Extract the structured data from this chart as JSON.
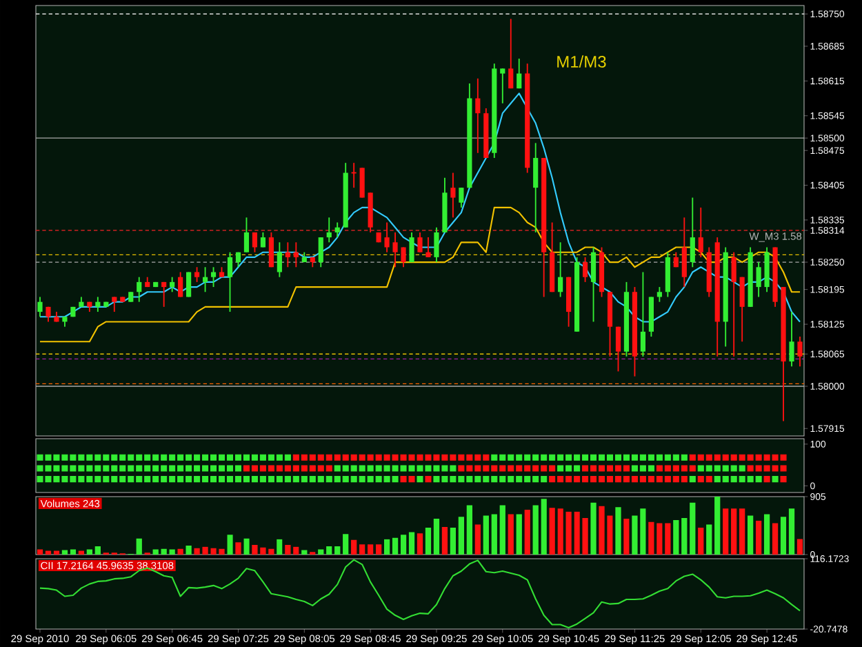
{
  "chart_data": [
    {
      "type": "candlestick",
      "categories": [
        null,
        null,
        null,
        null,
        null,
        null,
        null,
        null,
        null,
        null,
        null,
        null,
        null,
        null,
        null,
        null,
        null,
        null,
        null,
        null,
        null,
        null,
        null,
        null,
        null,
        null,
        null,
        null,
        null,
        null,
        null,
        null,
        null,
        null,
        null,
        null,
        null,
        null,
        null,
        null,
        null,
        null,
        null,
        null,
        null,
        null,
        null,
        null,
        null,
        null,
        null,
        null,
        null,
        null,
        null,
        null,
        null,
        null,
        null,
        null,
        null,
        null,
        null,
        null,
        null,
        null,
        null,
        null,
        null,
        null,
        null,
        null,
        null,
        null,
        null,
        null,
        null,
        null,
        null,
        null,
        null,
        null,
        null,
        null,
        null,
        null,
        null,
        null,
        null,
        null,
        null,
        null,
        null
      ],
      "ohlc": [
        [
          1.5815,
          1.5818,
          1.5814,
          1.5817
        ],
        [
          1.5816,
          1.5816,
          1.5813,
          1.5814
        ],
        [
          1.5814,
          1.5815,
          1.5813,
          1.5813
        ],
        [
          1.5813,
          1.5814,
          1.5812,
          1.5814
        ],
        [
          1.5814,
          1.5816,
          1.5814,
          1.5816
        ],
        [
          1.5816,
          1.5818,
          1.5816,
          1.5817
        ],
        [
          1.5817,
          1.5817,
          1.5815,
          1.5816
        ],
        [
          1.5816,
          1.5818,
          1.5815,
          1.5817
        ],
        [
          1.5816,
          1.5817,
          1.5816,
          1.5817
        ],
        [
          1.5818,
          1.5818,
          1.5815,
          1.5817
        ],
        [
          1.5818,
          1.5818,
          1.5817,
          1.5817
        ],
        [
          1.5817,
          1.5819,
          1.5817,
          1.5819
        ],
        [
          1.5819,
          1.5822,
          1.5817,
          1.5821
        ],
        [
          1.5821,
          1.5822,
          1.582,
          1.582
        ],
        [
          1.582,
          1.5821,
          1.582,
          1.5821
        ],
        [
          1.5821,
          1.5821,
          1.5816,
          1.582
        ],
        [
          1.582,
          1.5822,
          1.5819,
          1.5821
        ],
        [
          1.5822,
          1.5823,
          1.5818,
          1.5818
        ],
        [
          1.5818,
          1.5823,
          1.5818,
          1.5823
        ],
        [
          1.5823,
          1.5824,
          1.5821,
          1.5822
        ],
        [
          1.5821,
          1.5824,
          1.5819,
          1.5822
        ],
        [
          1.5822,
          1.5824,
          1.582,
          1.5823
        ],
        [
          1.5823,
          1.5824,
          1.5822,
          1.5822
        ],
        [
          1.5822,
          1.5827,
          1.5815,
          1.5826
        ],
        [
          1.5825,
          1.5827,
          1.5824,
          1.5827
        ],
        [
          1.5827,
          1.5834,
          1.5827,
          1.5831
        ],
        [
          1.5831,
          1.5831,
          1.5827,
          1.5828
        ],
        [
          1.5828,
          1.5831,
          1.5828,
          1.583
        ],
        [
          1.583,
          1.5831,
          1.5824,
          1.5824
        ],
        [
          1.5823,
          1.5829,
          1.5822,
          1.5827
        ],
        [
          1.5827,
          1.5829,
          1.5824,
          1.5826
        ],
        [
          1.5827,
          1.5829,
          1.5824,
          1.5826
        ],
        [
          1.5825,
          1.5827,
          1.5825,
          1.5826
        ],
        [
          1.5826,
          1.5826,
          1.5824,
          1.5825
        ],
        [
          1.5825,
          1.583,
          1.5824,
          1.583
        ],
        [
          1.583,
          1.5834,
          1.5829,
          1.5831
        ],
        [
          1.5831,
          1.5833,
          1.583,
          1.5832
        ],
        [
          1.5832,
          1.5845,
          1.5832,
          1.5843
        ],
        [
          1.5843,
          1.5845,
          1.584,
          1.5843
        ],
        [
          1.5844,
          1.5844,
          1.5838,
          1.5838
        ],
        [
          1.5839,
          1.5839,
          1.5831,
          1.5832
        ],
        [
          1.5831,
          1.5831,
          1.5829,
          1.5829
        ],
        [
          1.583,
          1.5833,
          1.5827,
          1.5828
        ],
        [
          1.5829,
          1.5831,
          1.5824,
          1.5827
        ],
        [
          1.5828,
          1.5828,
          1.5824,
          1.5825
        ],
        [
          1.5825,
          1.5831,
          1.5825,
          1.583
        ],
        [
          1.583,
          1.5831,
          1.5827,
          1.5827
        ],
        [
          1.5827,
          1.583,
          1.5826,
          1.5826
        ],
        [
          1.5826,
          1.5832,
          1.5825,
          1.5831
        ],
        [
          1.5831,
          1.5842,
          1.5831,
          1.5839
        ],
        [
          1.584,
          1.5843,
          1.5834,
          1.5838
        ],
        [
          1.5837,
          1.584,
          1.5836,
          1.584
        ],
        [
          1.584,
          1.5861,
          1.584,
          1.5858
        ],
        [
          1.5858,
          1.5862,
          1.5847,
          1.5855
        ],
        [
          1.5855,
          1.5856,
          1.5846,
          1.5846
        ],
        [
          1.5847,
          1.5865,
          1.5846,
          1.5864
        ],
        [
          1.5863,
          1.5864,
          1.5857,
          1.5864
        ],
        [
          1.5864,
          1.5874,
          1.586,
          1.586
        ],
        [
          1.586,
          1.5866,
          1.586,
          1.5863
        ],
        [
          1.5863,
          1.5865,
          1.5843,
          1.5844
        ],
        [
          1.584,
          1.5849,
          1.5831,
          1.5846
        ],
        [
          1.5846,
          1.5846,
          1.5818,
          1.5827
        ],
        [
          1.5827,
          1.5833,
          1.5819,
          1.5819
        ],
        [
          1.5819,
          1.5829,
          1.5818,
          1.5822
        ],
        [
          1.5822,
          1.5822,
          1.5812,
          1.5815
        ],
        [
          1.5811,
          1.5826,
          1.5811,
          1.5825
        ],
        [
          1.5825,
          1.5826,
          1.5821,
          1.5822
        ],
        [
          1.5821,
          1.5828,
          1.5813,
          1.5827
        ],
        [
          1.5827,
          1.5828,
          1.5818,
          1.5819
        ],
        [
          1.5819,
          1.5819,
          1.5806,
          1.5812
        ],
        [
          1.5812,
          1.5812,
          1.5803,
          1.5807
        ],
        [
          1.5807,
          1.5821,
          1.5806,
          1.5819
        ],
        [
          1.5819,
          1.582,
          1.5802,
          1.5806
        ],
        [
          1.5807,
          1.5823,
          1.5806,
          1.5811
        ],
        [
          1.5811,
          1.5818,
          1.581,
          1.5818
        ],
        [
          1.5818,
          1.582,
          1.5817,
          1.5819
        ],
        [
          1.5819,
          1.5827,
          1.5818,
          1.5826
        ],
        [
          1.5826,
          1.5827,
          1.5824,
          1.5824
        ],
        [
          1.5828,
          1.5834,
          1.582,
          1.5822
        ],
        [
          1.5825,
          1.5838,
          1.5824,
          1.583
        ],
        [
          1.583,
          1.5836,
          1.5826,
          1.5827
        ],
        [
          1.5827,
          1.5828,
          1.5818,
          1.5819
        ],
        [
          1.5829,
          1.583,
          1.5806,
          1.5813
        ],
        [
          1.5813,
          1.5828,
          1.5808,
          1.5827
        ],
        [
          1.5826,
          1.5827,
          1.5806,
          1.5821
        ],
        [
          1.5822,
          1.5822,
          1.5809,
          1.5816
        ],
        [
          1.5816,
          1.5828,
          1.5816,
          1.5827
        ],
        [
          1.582,
          1.5825,
          1.5818,
          1.5824
        ],
        [
          1.582,
          1.5828,
          1.5819,
          1.5827
        ],
        [
          1.5828,
          1.5828,
          1.5816,
          1.5817
        ],
        [
          1.582,
          1.582,
          1.5793,
          1.5805
        ],
        [
          1.5805,
          1.5815,
          1.5804,
          1.5809
        ],
        [
          1.5809,
          1.581,
          1.5804,
          1.5806
        ]
      ],
      "colors": [
        "#33ee33",
        "#ff1111",
        "#ff1111",
        "#33ee33",
        "#33ee33",
        "#33ee33",
        "#ff1111",
        "#33ee33",
        "#33ee33",
        "#ff1111",
        "#ff1111",
        "#33ee33",
        "#33ee33",
        "#ff1111",
        "#33ee33",
        "#ff1111",
        "#33ee33",
        "#ff1111",
        "#33ee33",
        "#ff1111",
        "#33ee33",
        "#33ee33",
        "#ff1111",
        "#33ee33",
        "#33ee33",
        "#33ee33",
        "#ff1111",
        "#33ee33",
        "#ff1111",
        "#33ee33",
        "#ff1111",
        "#ff1111",
        "#33ee33",
        "#ff1111",
        "#33ee33",
        "#33ee33",
        "#33ee33",
        "#33ee33",
        "#ff1111",
        "#ff1111",
        "#ff1111",
        "#ff1111",
        "#ff1111",
        "#ff1111",
        "#ff1111",
        "#33ee33",
        "#ff1111",
        "#ff1111",
        "#33ee33",
        "#33ee33",
        "#ff1111",
        "#33ee33",
        "#33ee33",
        "#ff1111",
        "#ff1111",
        "#33ee33",
        "#33ee33",
        "#ff1111",
        "#33ee33",
        "#ff1111",
        "#33ee33",
        "#ff1111",
        "#ff1111",
        "#33ee33",
        "#ff1111",
        "#33ee33",
        "#ff1111",
        "#33ee33",
        "#ff1111",
        "#ff1111",
        "#ff1111",
        "#33ee33",
        "#ff1111",
        "#33ee33",
        "#33ee33",
        "#33ee33",
        "#33ee33",
        "#ff1111",
        "#ff1111",
        "#33ee33",
        "#ff1111",
        "#ff1111",
        "#ff1111",
        "#33ee33",
        "#ff1111",
        "#ff1111",
        "#33ee33",
        "#33ee33",
        "#33ee33",
        "#ff1111",
        "#ff1111",
        "#33ee33",
        "#ff1111"
      ],
      "series": [
        {
          "type": "line",
          "color": "#33ccff",
          "values": [
            1.5814,
            1.5814,
            1.5814,
            1.5814,
            1.5815,
            1.5816,
            1.5816,
            1.5816,
            1.5816,
            1.5817,
            1.5817,
            1.5818,
            1.5818,
            1.5819,
            1.5819,
            1.5819,
            1.582,
            1.5819,
            1.582,
            1.582,
            1.5821,
            1.5821,
            1.5822,
            1.5822,
            1.5824,
            1.5826,
            1.5826,
            1.5827,
            1.5827,
            1.5827,
            1.5827,
            1.5827,
            1.5826,
            1.5826,
            1.5827,
            1.5828,
            1.583,
            1.5833,
            1.5835,
            1.5836,
            1.5836,
            1.5835,
            1.5834,
            1.5832,
            1.583,
            1.5829,
            1.5828,
            1.5828,
            1.5828,
            1.5831,
            1.5833,
            1.5835,
            1.584,
            1.5843,
            1.5846,
            1.5849,
            1.5855,
            1.5857,
            1.5859,
            1.5856,
            1.5853,
            1.5848,
            1.5842,
            1.5835,
            1.5829,
            1.5825,
            1.5824,
            1.5821,
            1.582,
            1.5819,
            1.5817,
            1.5816,
            1.5814,
            1.5813,
            1.5813,
            1.5814,
            1.5815,
            1.5818,
            1.582,
            1.5823,
            1.5824,
            1.5823,
            1.5822,
            1.5822,
            1.5821,
            1.582,
            1.5821,
            1.5821,
            1.5822,
            1.5821,
            1.5819,
            1.5815,
            1.5813
          ]
        },
        {
          "type": "line",
          "color": "#f2c200",
          "values": [
            1.5809,
            1.5809,
            1.5809,
            1.5809,
            1.5809,
            1.5809,
            1.5809,
            1.5812,
            1.5813,
            1.5813,
            1.5813,
            1.5813,
            1.5813,
            1.5813,
            1.5813,
            1.5813,
            1.5813,
            1.5813,
            1.5813,
            1.5815,
            1.5816,
            1.5816,
            1.5816,
            1.5816,
            1.5816,
            1.5816,
            1.5816,
            1.5816,
            1.5816,
            1.5816,
            1.5816,
            1.582,
            1.582,
            1.582,
            1.582,
            1.582,
            1.582,
            1.582,
            1.582,
            1.582,
            1.582,
            1.582,
            1.582,
            1.5825,
            1.5825,
            1.5825,
            1.5825,
            1.5825,
            1.5825,
            1.5825,
            1.5826,
            1.5829,
            1.5829,
            1.5829,
            1.5827,
            1.5836,
            1.5836,
            1.5836,
            1.5835,
            1.5833,
            1.5832,
            1.5829,
            1.5827,
            1.5827,
            1.5827,
            1.5827,
            1.5828,
            1.5828,
            1.5827,
            1.5825,
            1.5825,
            1.5826,
            1.5824,
            1.5825,
            1.5826,
            1.5826,
            1.5827,
            1.5828,
            1.5828,
            1.5828,
            1.5827,
            1.5825,
            1.5825,
            1.5826,
            1.5826,
            1.5825,
            1.5826,
            1.5827,
            1.5827,
            1.5826,
            1.5823,
            1.5819,
            1.5819
          ]
        }
      ],
      "ylim": [
        1.579,
        1.58767
      ],
      "yticks": [
        {
          "value": 1.5875,
          "label": "1.58750"
        },
        {
          "value": 1.58685,
          "label": "1.58685"
        },
        {
          "value": 1.58615,
          "label": "1.58615"
        },
        {
          "value": 1.58545,
          "label": "1.58545"
        },
        {
          "value": 1.585,
          "label": "1.58500"
        },
        {
          "value": 1.58475,
          "label": "1.58475"
        },
        {
          "value": 1.58405,
          "label": "1.58405"
        },
        {
          "value": 1.58335,
          "label": "1.58335"
        },
        {
          "value": 1.58314,
          "label": "1.58314"
        },
        {
          "value": 1.5825,
          "label": "1.58250"
        },
        {
          "value": 1.58195,
          "label": "1.58195"
        },
        {
          "value": 1.58125,
          "label": "1.58125"
        },
        {
          "value": 1.58065,
          "label": "1.58065"
        },
        {
          "value": 1.58,
          "label": "1.58000"
        },
        {
          "value": 1.57915,
          "label": "1.57915"
        }
      ],
      "ref_lines": [
        {
          "axis": "y",
          "value": 1.5875,
          "color": "#dddddd",
          "line_style": "dashed"
        },
        {
          "axis": "y",
          "value": 1.585,
          "color": "#aaaaaa",
          "line_style": "solid"
        },
        {
          "axis": "y",
          "value": 1.58314,
          "color": "#cc2222",
          "line_style": "dashed",
          "label": "W_M3 1.58"
        },
        {
          "axis": "y",
          "value": 1.58265,
          "color": "#e6c000",
          "line_style": "dashed"
        },
        {
          "axis": "y",
          "value": 1.5825,
          "color": "#aaaaaa",
          "line_style": "dashed"
        },
        {
          "axis": "y",
          "value": 1.58065,
          "color": "#e6c000",
          "line_style": "dashed"
        },
        {
          "axis": "y",
          "value": 1.58055,
          "color": "#aa22aa",
          "line_style": "dashed"
        },
        {
          "axis": "y",
          "value": 1.58005,
          "color": "#ff6600",
          "line_style": "dashed"
        },
        {
          "axis": "y",
          "value": 1.58,
          "color": "#aaaaaa",
          "line_style": "solid"
        }
      ],
      "annotations": [
        "M1/M3"
      ],
      "tick_labels": "y"
    },
    {
      "type": "scatter",
      "marker": "square",
      "categories": [
        null,
        null,
        null,
        null,
        null,
        null,
        null,
        null,
        null,
        null,
        null,
        null,
        null,
        null,
        null,
        null,
        null,
        null,
        null,
        null,
        null,
        null,
        null,
        null,
        null,
        null,
        null,
        null,
        null,
        null,
        null,
        null,
        null,
        null,
        null,
        null,
        null,
        null,
        null,
        null,
        null,
        null,
        null,
        null,
        null,
        null,
        null,
        null,
        null,
        null,
        null,
        null,
        null,
        null,
        null,
        null,
        null,
        null,
        null,
        null,
        null,
        null,
        null,
        null,
        null,
        null,
        null,
        null,
        null,
        null,
        null,
        null,
        null,
        null,
        null,
        null,
        null,
        null,
        null,
        null,
        null,
        null,
        null,
        null,
        null,
        null,
        null,
        null,
        null,
        null,
        null,
        null,
        null
      ],
      "series": [
        {
          "values": [
            68,
            68,
            68,
            68,
            68,
            68,
            68,
            68,
            68,
            68,
            68,
            68,
            68,
            68,
            68,
            68,
            68,
            68,
            68,
            68,
            68,
            68,
            68,
            68,
            68,
            68,
            68,
            68,
            68,
            68,
            68,
            68,
            68,
            68,
            68,
            68,
            68,
            68,
            68,
            68,
            68,
            68,
            68,
            68,
            68,
            68,
            68,
            68,
            68,
            68,
            68,
            68,
            68,
            68,
            68,
            68,
            68,
            68,
            68,
            68,
            68,
            68,
            68,
            68,
            68,
            68,
            68,
            68,
            68,
            68,
            68,
            68,
            68,
            68,
            68,
            68,
            68,
            68,
            68,
            68,
            68,
            68,
            68,
            68,
            68,
            68,
            68,
            68,
            68,
            68,
            68,
            null,
            null
          ],
          "colors": [
            "#33ee33",
            "#33ee33",
            "#33ee33",
            "#33ee33",
            "#33ee33",
            "#33ee33",
            "#33ee33",
            "#33ee33",
            "#33ee33",
            "#33ee33",
            "#33ee33",
            "#33ee33",
            "#33ee33",
            "#33ee33",
            "#33ee33",
            "#33ee33",
            "#33ee33",
            "#33ee33",
            "#33ee33",
            "#33ee33",
            "#33ee33",
            "#33ee33",
            "#33ee33",
            "#33ee33",
            "#33ee33",
            "#33ee33",
            "#33ee33",
            "#33ee33",
            "#33ee33",
            "#33ee33",
            "#33ee33",
            "#ff1111",
            "#ff1111",
            "#ff1111",
            "#ff1111",
            "#ff1111",
            "#ff1111",
            "#ff1111",
            "#ff1111",
            "#ff1111",
            "#ff1111",
            "#ff1111",
            "#ff1111",
            "#ff1111",
            "#ff1111",
            "#ff1111",
            "#ff1111",
            "#ff1111",
            "#ff1111",
            "#ff1111",
            "#ff1111",
            "#ff1111",
            "#ff1111",
            "#ff1111",
            "#ff1111",
            "#33ee33",
            "#33ee33",
            "#33ee33",
            "#33ee33",
            "#33ee33",
            "#33ee33",
            "#33ee33",
            "#33ee33",
            "#33ee33",
            "#33ee33",
            "#33ee33",
            "#33ee33",
            "#33ee33",
            "#33ee33",
            "#33ee33",
            "#33ee33",
            "#33ee33",
            "#33ee33",
            "#33ee33",
            "#33ee33",
            "#33ee33",
            "#33ee33",
            "#33ee33",
            "#33ee33",
            "#ff1111",
            "#ff1111",
            "#ff1111",
            "#ff1111",
            "#ff1111",
            "#ff1111",
            "#ff1111",
            "#ff1111",
            "#ff1111",
            "#ff1111",
            "#ff1111",
            "#ff1111",
            null,
            null
          ]
        },
        {
          "values": [
            42,
            42,
            42,
            42,
            42,
            42,
            42,
            42,
            42,
            42,
            42,
            42,
            42,
            42,
            42,
            42,
            42,
            42,
            42,
            42,
            42,
            42,
            42,
            42,
            42,
            42,
            42,
            42,
            42,
            42,
            42,
            42,
            42,
            42,
            42,
            42,
            42,
            42,
            42,
            42,
            42,
            42,
            42,
            42,
            42,
            42,
            42,
            42,
            42,
            42,
            42,
            42,
            42,
            42,
            42,
            42,
            42,
            42,
            42,
            42,
            42,
            42,
            42,
            42,
            42,
            42,
            42,
            42,
            42,
            42,
            42,
            42,
            42,
            42,
            42,
            42,
            42,
            42,
            42,
            42,
            42,
            42,
            42,
            42,
            42,
            42,
            42,
            42,
            42,
            42,
            42,
            null,
            null
          ],
          "colors": [
            "#33ee33",
            "#33ee33",
            "#33ee33",
            "#33ee33",
            "#33ee33",
            "#33ee33",
            "#33ee33",
            "#33ee33",
            "#33ee33",
            "#33ee33",
            "#33ee33",
            "#33ee33",
            "#33ee33",
            "#33ee33",
            "#33ee33",
            "#33ee33",
            "#33ee33",
            "#33ee33",
            "#33ee33",
            "#33ee33",
            "#33ee33",
            "#33ee33",
            "#33ee33",
            "#33ee33",
            "#33ee33",
            "#ff1111",
            "#ff1111",
            "#ff1111",
            "#ff1111",
            "#ff1111",
            "#ff1111",
            "#ff1111",
            "#ff1111",
            "#ff1111",
            "#ff1111",
            "#ff1111",
            "#33ee33",
            "#33ee33",
            "#33ee33",
            "#33ee33",
            "#33ee33",
            "#33ee33",
            "#33ee33",
            "#33ee33",
            "#33ee33",
            "#33ee33",
            "#33ee33",
            "#33ee33",
            "#33ee33",
            "#33ee33",
            "#33ee33",
            "#ff1111",
            "#ff1111",
            "#ff1111",
            "#ff1111",
            "#ff1111",
            "#ff1111",
            "#ff1111",
            "#ff1111",
            "#ff1111",
            "#ff1111",
            "#ff1111",
            "#ff1111",
            "#33ee33",
            "#33ee33",
            "#33ee33",
            "#ff1111",
            "#ff1111",
            "#ff1111",
            "#ff1111",
            "#ff1111",
            "#ff1111",
            "#33ee33",
            "#33ee33",
            "#33ee33",
            "#ff1111",
            "#ff1111",
            "#ff1111",
            "#ff1111",
            "#ff1111",
            "#33ee33",
            "#33ee33",
            "#33ee33",
            "#33ee33",
            "#33ee33",
            "#33ee33",
            "#ff1111",
            "#ff1111",
            "#ff1111",
            "#ff1111",
            "#ff1111",
            null,
            null
          ]
        },
        {
          "values": [
            16,
            16,
            16,
            16,
            16,
            16,
            16,
            16,
            16,
            16,
            16,
            16,
            16,
            16,
            16,
            16,
            16,
            16,
            16,
            16,
            16,
            16,
            16,
            16,
            16,
            16,
            16,
            16,
            16,
            16,
            16,
            16,
            16,
            16,
            16,
            16,
            16,
            16,
            16,
            16,
            16,
            16,
            16,
            16,
            16,
            16,
            16,
            16,
            16,
            16,
            16,
            16,
            16,
            16,
            16,
            16,
            16,
            16,
            16,
            16,
            16,
            16,
            16,
            16,
            16,
            16,
            16,
            16,
            16,
            16,
            16,
            16,
            16,
            16,
            16,
            16,
            16,
            16,
            16,
            16,
            16,
            16,
            16,
            16,
            16,
            16,
            16,
            16,
            16,
            16,
            16,
            null,
            null
          ],
          "colors": [
            "#33ee33",
            "#33ee33",
            "#33ee33",
            "#33ee33",
            "#33ee33",
            "#33ee33",
            "#33ee33",
            "#33ee33",
            "#33ee33",
            "#33ee33",
            "#33ee33",
            "#33ee33",
            "#33ee33",
            "#33ee33",
            "#33ee33",
            "#33ee33",
            "#33ee33",
            "#33ee33",
            "#33ee33",
            "#33ee33",
            "#33ee33",
            "#33ee33",
            "#33ee33",
            "#33ee33",
            "#33ee33",
            "#33ee33",
            "#33ee33",
            "#33ee33",
            "#33ee33",
            "#33ee33",
            "#33ee33",
            "#33ee33",
            "#33ee33",
            "#33ee33",
            "#33ee33",
            "#33ee33",
            "#33ee33",
            "#33ee33",
            "#33ee33",
            "#33ee33",
            "#33ee33",
            "#33ee33",
            "#33ee33",
            "#33ee33",
            "#ff1111",
            "#ff1111",
            "#33ee33",
            "#ff1111",
            "#33ee33",
            "#33ee33",
            "#33ee33",
            "#33ee33",
            "#33ee33",
            "#33ee33",
            "#33ee33",
            "#33ee33",
            "#33ee33",
            "#33ee33",
            "#33ee33",
            "#33ee33",
            "#33ee33",
            "#33ee33",
            "#ff1111",
            "#ff1111",
            "#ff1111",
            "#ff1111",
            "#ff1111",
            "#ff1111",
            "#ff1111",
            "#ff1111",
            "#ff1111",
            "#ff1111",
            "#ff1111",
            "#ff1111",
            "#ff1111",
            "#ff1111",
            "#ff1111",
            "#ff1111",
            "#ff1111",
            "#33ee33",
            "#ff1111",
            "#ff1111",
            "#33ee33",
            "#33ee33",
            "#33ee33",
            "#33ee33",
            "#33ee33",
            "#33ee33",
            "#ff1111",
            "#33ee33",
            "#ff1111",
            null,
            null
          ]
        }
      ],
      "ylim": [
        -16,
        113
      ],
      "yticks": [
        0,
        100
      ],
      "tick_labels": "y"
    },
    {
      "type": "bar",
      "title": "Volumes 243",
      "categories": [
        null,
        null,
        null,
        null,
        null,
        null,
        null,
        null,
        null,
        null,
        null,
        null,
        null,
        null,
        null,
        null,
        null,
        null,
        null,
        null,
        null,
        null,
        null,
        null,
        null,
        null,
        null,
        null,
        null,
        null,
        null,
        null,
        null,
        null,
        null,
        null,
        null,
        null,
        null,
        null,
        null,
        null,
        null,
        null,
        null,
        null,
        null,
        null,
        null,
        null,
        null,
        null,
        null,
        null,
        null,
        null,
        null,
        null,
        null,
        null,
        null,
        null,
        null,
        null,
        null,
        null,
        null,
        null,
        null,
        null,
        null,
        null,
        null,
        null,
        null,
        null,
        null,
        null,
        null,
        null,
        null,
        null,
        null,
        null,
        null,
        null,
        null,
        null,
        null,
        null,
        null,
        null,
        null
      ],
      "values": [
        80,
        60,
        60,
        70,
        80,
        60,
        80,
        130,
        30,
        30,
        20,
        10,
        250,
        30,
        80,
        90,
        80,
        90,
        140,
        100,
        120,
        100,
        90,
        310,
        190,
        250,
        150,
        110,
        90,
        240,
        150,
        120,
        70,
        40,
        80,
        130,
        130,
        320,
        230,
        160,
        160,
        160,
        240,
        260,
        310,
        350,
        330,
        420,
        560,
        430,
        420,
        590,
        770,
        470,
        610,
        630,
        770,
        630,
        630,
        700,
        770,
        870,
        730,
        720,
        670,
        670,
        570,
        810,
        760,
        610,
        740,
        560,
        610,
        720,
        510,
        490,
        490,
        540,
        570,
        810,
        420,
        470,
        905,
        720,
        720,
        720,
        610,
        530,
        630,
        490,
        590,
        720,
        243
      ],
      "colors": [
        "#ff1111",
        "#ff1111",
        "#ff1111",
        "#33ee33",
        "#33ee33",
        "#ff1111",
        "#33ee33",
        "#33ee33",
        "#ff1111",
        "#ff1111",
        "#ff1111",
        "#33ee33",
        "#33ee33",
        "#ff1111",
        "#33ee33",
        "#33ee33",
        "#33ee33",
        "#ff1111",
        "#33ee33",
        "#ff1111",
        "#ff1111",
        "#ff1111",
        "#ff1111",
        "#33ee33",
        "#ff1111",
        "#33ee33",
        "#ff1111",
        "#ff1111",
        "#ff1111",
        "#33ee33",
        "#ff1111",
        "#ff1111",
        "#33ee33",
        "#ff1111",
        "#33ee33",
        "#33ee33",
        "#33ee33",
        "#33ee33",
        "#ff1111",
        "#ff1111",
        "#ff1111",
        "#ff1111",
        "#33ee33",
        "#33ee33",
        "#33ee33",
        "#33ee33",
        "#ff1111",
        "#33ee33",
        "#33ee33",
        "#ff1111",
        "#33ee33",
        "#33ee33",
        "#33ee33",
        "#ff1111",
        "#33ee33",
        "#33ee33",
        "#33ee33",
        "#ff1111",
        "#33ee33",
        "#ff1111",
        "#33ee33",
        "#33ee33",
        "#ff1111",
        "#ff1111",
        "#ff1111",
        "#ff1111",
        "#ff1111",
        "#33ee33",
        "#ff1111",
        "#ff1111",
        "#33ee33",
        "#ff1111",
        "#33ee33",
        "#33ee33",
        "#ff1111",
        "#ff1111",
        "#ff1111",
        "#33ee33",
        "#33ee33",
        "#33ee33",
        "#ff1111",
        "#33ee33",
        "#33ee33",
        "#ff1111",
        "#ff1111",
        "#ff1111",
        "#33ee33",
        "#ff1111",
        "#33ee33",
        "#ff1111",
        "#33ee33",
        "#33ee33",
        "#ff1111"
      ],
      "ylim": [
        0,
        905
      ],
      "yticks": [
        0,
        905
      ],
      "tick_labels": "y"
    },
    {
      "type": "line",
      "title": "CII 17.2164 45.9635 38.3108",
      "categories": [
        "29 Sep 2010",
        null,
        null,
        null,
        null,
        null,
        null,
        null,
        "29 Sep 06:05",
        null,
        null,
        null,
        null,
        null,
        null,
        null,
        "29 Sep 06:45",
        null,
        null,
        null,
        null,
        null,
        null,
        null,
        "29 Sep 07:25",
        null,
        null,
        null,
        null,
        null,
        null,
        null,
        "29 Sep 08:05",
        null,
        null,
        null,
        null,
        null,
        null,
        null,
        "29 Sep 08:45",
        null,
        null,
        null,
        null,
        null,
        null,
        null,
        "29 Sep 09:25",
        null,
        null,
        null,
        null,
        null,
        null,
        null,
        "29 Sep 10:05",
        null,
        null,
        null,
        null,
        null,
        null,
        null,
        "29 Sep 10:45",
        null,
        null,
        null,
        null,
        null,
        null,
        null,
        "29 Sep 11:25",
        null,
        null,
        null,
        null,
        null,
        null,
        null,
        "29 Sep 12:05",
        null,
        null,
        null,
        null,
        null,
        null,
        null,
        "29 Sep 12:45",
        null,
        null,
        null,
        null
      ],
      "series": [
        {
          "color": "#33dd33",
          "values": [
            59,
            58,
            55,
            43,
            45,
            59,
            67,
            72,
            73,
            77,
            78,
            81,
            93,
            98,
            91,
            83,
            80,
            43,
            60,
            59,
            61,
            64,
            58,
            67,
            78,
            97,
            93,
            71,
            48,
            45,
            42,
            37,
            33,
            25,
            38,
            47,
            66,
            100,
            114,
            105,
            71,
            45,
            18,
            6,
            -2,
            5,
            10,
            9,
            27,
            58,
            83,
            92,
            106,
            113,
            91,
            89,
            92,
            88,
            84,
            75,
            38,
            6,
            -12,
            -12,
            -18,
            -11,
            0,
            11,
            32,
            28,
            29,
            37,
            37,
            38,
            45,
            53,
            58,
            73,
            82,
            86,
            75,
            61,
            42,
            40,
            43,
            43,
            44,
            49,
            55,
            48,
            40,
            27,
            15
          ]
        }
      ],
      "ylim": [
        -20.7478,
        116.1723
      ],
      "yticks": [
        {
          "value": 116.1723,
          "label": "116.1723"
        },
        {
          "value": -20.7478,
          "label": "-20.7478"
        }
      ]
    }
  ]
}
